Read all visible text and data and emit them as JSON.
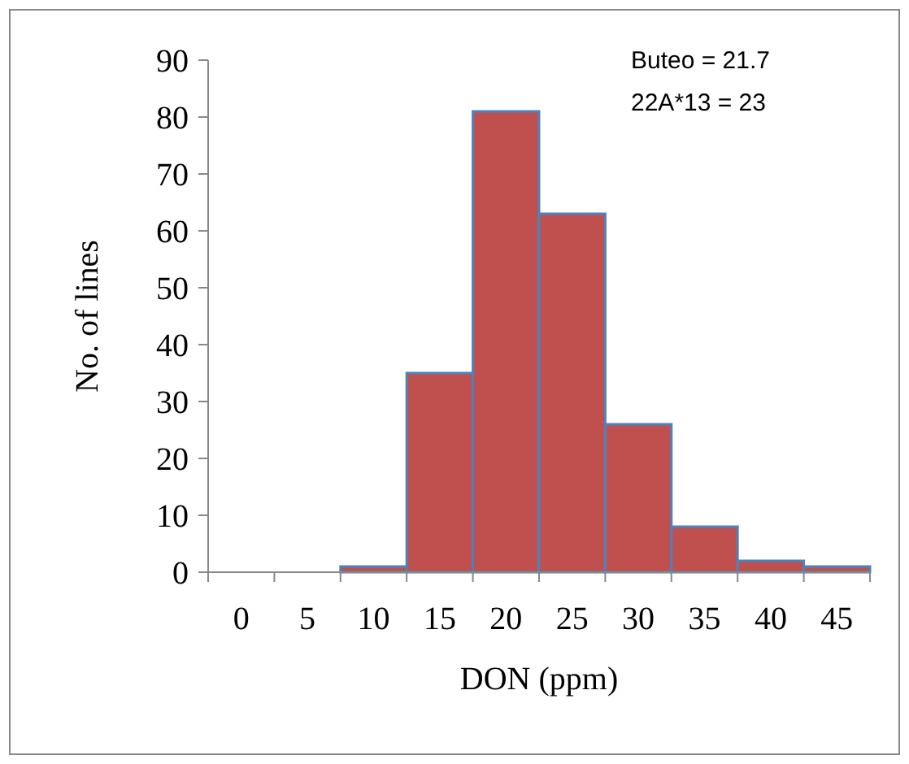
{
  "chart_data": {
    "type": "bar",
    "xlabel": "DON (ppm)",
    "ylabel": "No. of lines",
    "categories": [
      "0",
      "5",
      "10",
      "15",
      "20",
      "25",
      "30",
      "35",
      "40",
      "45"
    ],
    "values": [
      0,
      0,
      1,
      35,
      81,
      63,
      26,
      8,
      2,
      1
    ],
    "color": "#c0504d",
    "ylim": [
      0,
      90
    ],
    "yticks": [
      0,
      10,
      20,
      30,
      40,
      50,
      60,
      70,
      80,
      90
    ],
    "annotations": [
      "Buteo = 21.7",
      "22A*13 = 23"
    ],
    "grid": false
  }
}
